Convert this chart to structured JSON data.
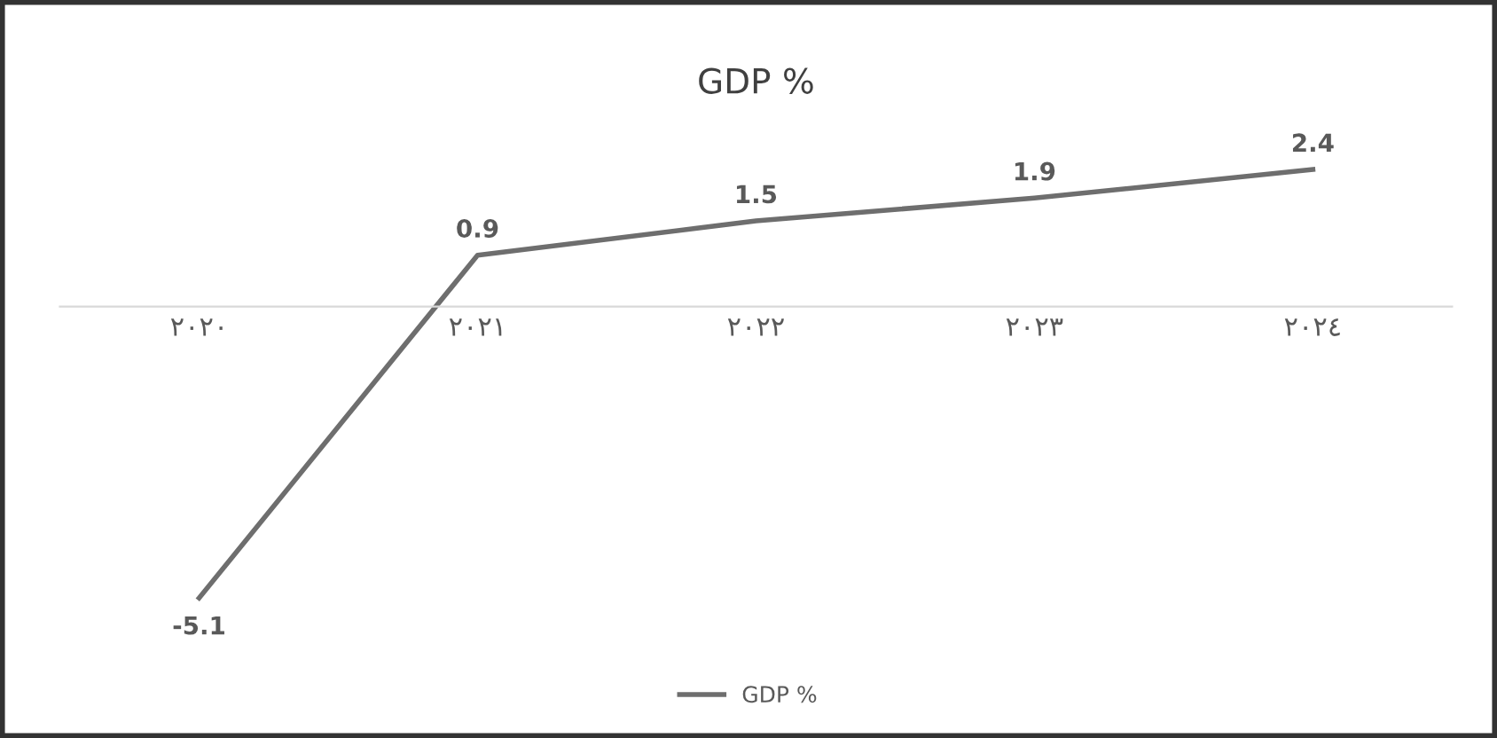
{
  "chart_data": {
    "type": "line",
    "title": "GDP %",
    "categories": [
      "٢٠٢٠",
      "٢٠٢١",
      "٢٠٢٢",
      "٢٠٢٣",
      "٢٠٢٤"
    ],
    "series": [
      {
        "name": "GDP %",
        "color": "#6e6e6e",
        "values": [
          -5.1,
          0.9,
          1.5,
          1.9,
          2.4
        ]
      }
    ],
    "data_labels": true,
    "legend": "bottom",
    "grid": false,
    "marker": "none",
    "line_style": "solid",
    "tick_labels": "x"
  }
}
